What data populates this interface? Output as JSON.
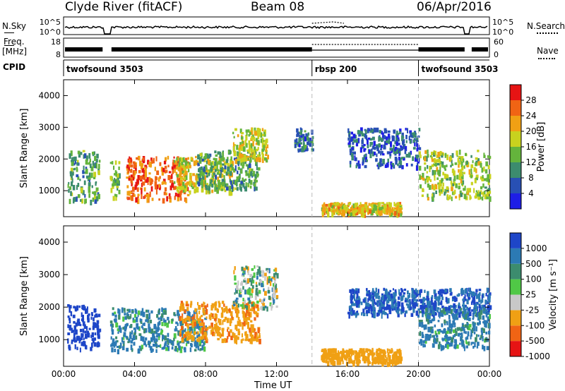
{
  "header": {
    "radar": "Clyde River (fitACF)",
    "beam": "Beam 08",
    "date": "06/Apr/2016"
  },
  "strip": {
    "nsky_label": "N.Sky",
    "nsearch_label": "N.Search",
    "freq_label": "Freq.",
    "freq_unit": "[MHz]",
    "nave_label": "Nave",
    "cpid_label": "CPID",
    "nsky_ticks": [
      "10^5",
      "10^0"
    ],
    "freq_ticks": [
      "18",
      "8"
    ],
    "nave_ticks": [
      "60",
      "0"
    ]
  },
  "cpid_segments": [
    {
      "name": "twofsound 3503",
      "start_h": 0.0,
      "end_h": 14.0
    },
    {
      "name": "rbsp 200",
      "start_h": 14.0,
      "end_h": 20.0
    },
    {
      "name": "twofsound 3503",
      "start_h": 20.0,
      "end_h": 24.0
    }
  ],
  "chart_data": [
    {
      "type": "heatmap",
      "name": "power",
      "ylabel": "Slant Range [km]",
      "xlabel": "Time UT",
      "xlim": [
        0,
        24
      ],
      "ylim": [
        180,
        4500
      ],
      "xticks": [
        "00:00",
        "04:00",
        "08:00",
        "12:00",
        "16:00",
        "20:00",
        "00:00"
      ],
      "yticks": [
        1000,
        2000,
        3000,
        4000
      ],
      "colorbar": {
        "label": "Power [dB]",
        "ticks": [
          4,
          8,
          12,
          16,
          20,
          24,
          28
        ],
        "range": [
          0,
          32
        ],
        "colors": [
          "#1e1ee6",
          "#2850b4",
          "#3c8c6e",
          "#64b43c",
          "#c8d21e",
          "#f0a014",
          "#f06414",
          "#e61414"
        ]
      },
      "features": [
        {
          "t0": 0.2,
          "t1": 2.0,
          "r0": 700,
          "r1": 2300,
          "level": 12
        },
        {
          "t0": 2.6,
          "t1": 3.1,
          "r0": 800,
          "r1": 2000,
          "level": 14
        },
        {
          "t0": 3.5,
          "t1": 7.0,
          "r0": 750,
          "r1": 2100,
          "level": 26
        },
        {
          "t0": 6.2,
          "t1": 9.5,
          "r0": 1000,
          "r1": 2100,
          "level": 18
        },
        {
          "t0": 7.5,
          "t1": 11.0,
          "r0": 1100,
          "r1": 2300,
          "level": 12
        },
        {
          "t0": 9.5,
          "t1": 11.5,
          "r0": 2000,
          "r1": 3000,
          "level": 18
        },
        {
          "t0": 13.0,
          "t1": 14.0,
          "r0": 2300,
          "r1": 3000,
          "level": 8
        },
        {
          "t0": 14.5,
          "t1": 19.0,
          "r0": 300,
          "r1": 650,
          "level": 20
        },
        {
          "t0": 16.0,
          "t1": 20.0,
          "r0": 1800,
          "r1": 3000,
          "level": 6
        },
        {
          "t0": 20.0,
          "t1": 24.0,
          "r0": 800,
          "r1": 2300,
          "level": 16
        }
      ]
    },
    {
      "type": "heatmap",
      "name": "velocity",
      "ylabel": "Slant Range [km]",
      "xlabel": "Time UT",
      "xlim": [
        0,
        24
      ],
      "ylim": [
        180,
        4500
      ],
      "xticks": [
        "00:00",
        "04:00",
        "08:00",
        "12:00",
        "16:00",
        "20:00",
        "00:00"
      ],
      "yticks": [
        1000,
        2000,
        3000,
        4000
      ],
      "colorbar": {
        "label": "Velocity [m s⁻¹]",
        "ticks": [
          "1000",
          "500",
          "100",
          "25",
          "-25",
          "-100",
          "-500",
          "-1000"
        ],
        "colors": [
          "#1e46c8",
          "#2c7ab4",
          "#3c8c6e",
          "#50c846",
          "#c8c8c8",
          "#f0a014",
          "#f06414",
          "#e61414"
        ]
      },
      "features": [
        {
          "t0": 0.2,
          "t1": 2.0,
          "r0": 750,
          "r1": 2100,
          "velocity": 700
        },
        {
          "t0": 2.6,
          "t1": 8.0,
          "r0": 700,
          "r1": 2000,
          "velocity": 150
        },
        {
          "t0": 6.5,
          "t1": 11.0,
          "r0": 1000,
          "r1": 2200,
          "velocity": -400
        },
        {
          "t0": 9.5,
          "t1": 12.0,
          "r0": 2000,
          "r1": 3300,
          "velocity": 0
        },
        {
          "t0": 14.5,
          "t1": 19.0,
          "r0": 300,
          "r1": 750,
          "velocity": -300
        },
        {
          "t0": 16.0,
          "t1": 24.0,
          "r0": 1800,
          "r1": 2600,
          "velocity": 500
        },
        {
          "t0": 20.0,
          "t1": 24.0,
          "r0": 800,
          "r1": 2000,
          "velocity": 150
        }
      ]
    }
  ],
  "panels": {
    "time_axis_label": "Time UT"
  }
}
